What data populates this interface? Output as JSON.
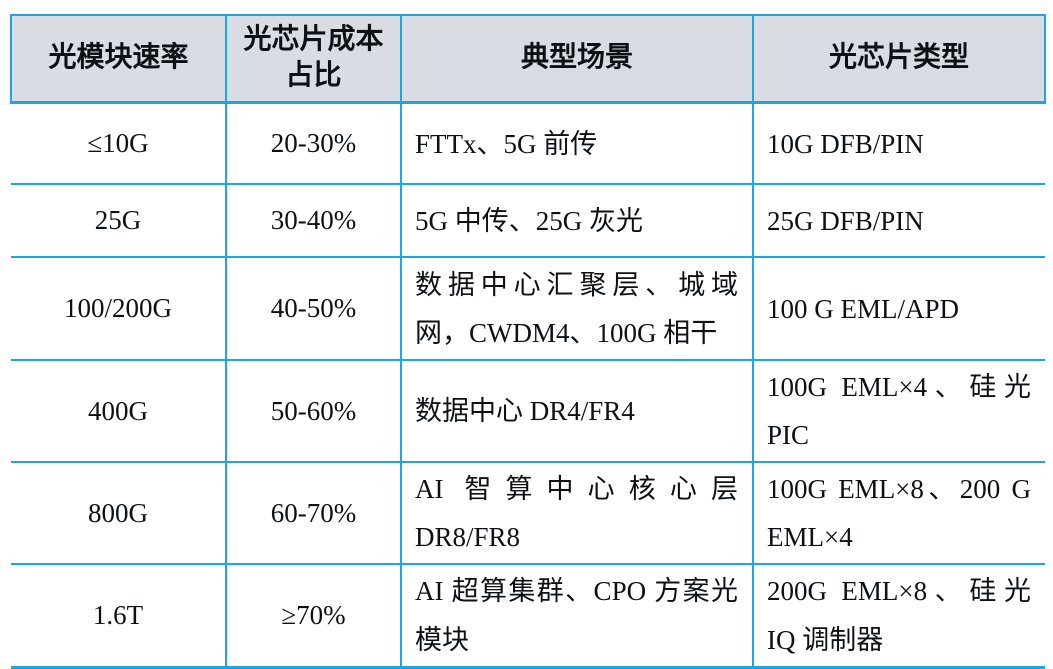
{
  "colors": {
    "border": "#1ba6e4",
    "header_bg": "#d9dde3",
    "text": "#0d1014",
    "background": "#ffffff"
  },
  "table": {
    "headers": [
      "光模块速率",
      "光芯片成本占比",
      "典型场景",
      "光芯片类型"
    ],
    "rows": [
      {
        "speed": "≤10G",
        "cost_share": "20-30%",
        "scenarios": "FTTx、5G 前传",
        "chip_types": "10G DFB/PIN"
      },
      {
        "speed": "25G",
        "cost_share": "30-40%",
        "scenarios": "5G 中传、25G 灰光",
        "chip_types": "25G DFB/PIN"
      },
      {
        "speed": "100/200G",
        "cost_share": "40-50%",
        "scenarios": "数据中心汇聚层、城域网，CWDM4、100G 相干",
        "chip_types": "100 G EML/APD"
      },
      {
        "speed": "400G",
        "cost_share": "50-60%",
        "scenarios": "数据中心 DR4/FR4",
        "chip_types": "100G EML×4、硅光 PIC"
      },
      {
        "speed": "800G",
        "cost_share": "60-70%",
        "scenarios": "AI 智算中心核心层 DR8/FR8",
        "chip_types": "100G EML×8、200 G EML×4"
      },
      {
        "speed": "1.6T",
        "cost_share": "≥70%",
        "scenarios": "AI 超算集群、CPO 方案光模块",
        "chip_types": "200G EML×8、硅光 IQ 调制器"
      }
    ]
  }
}
